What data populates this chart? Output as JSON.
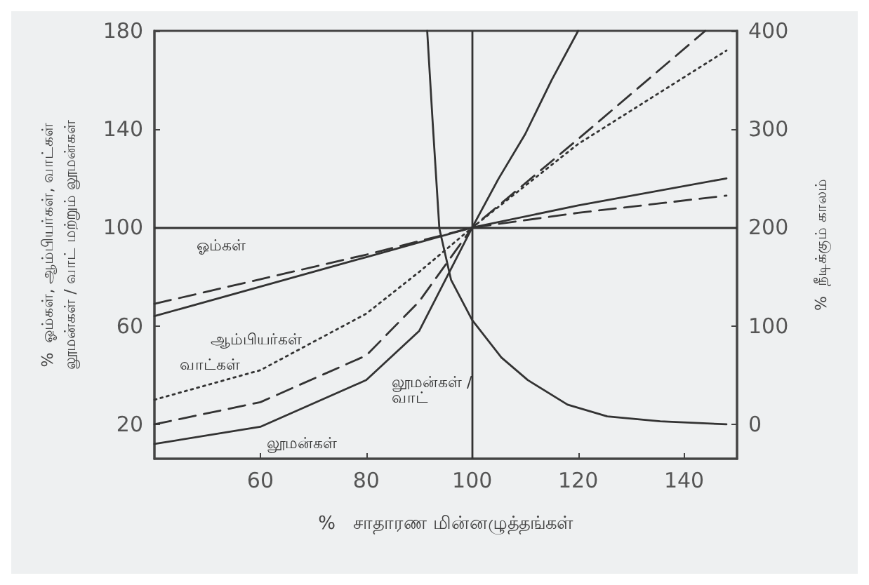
{
  "chart_data": {
    "type": "line",
    "xlabel": "%   சாதாரண மின்னழுத்தங்கள்",
    "ylabel": "%  ஓம்கள், ஆம்பியர்கள், வாட்கள்\nலூமன்கள் / வாட் மற்றும் லூமன்கள்",
    "y2label": "%  நீடிக்கும் காலம்",
    "xlim": [
      40,
      150
    ],
    "xticks": [
      60,
      80,
      100,
      120,
      140
    ],
    "ylim": [
      6,
      180
    ],
    "yticks": [
      20,
      60,
      100,
      140,
      180
    ],
    "y2lim": [
      -35,
      400
    ],
    "y2ticks": [
      0,
      100,
      200,
      300,
      400
    ],
    "grid": false,
    "marker": "none",
    "series": [
      {
        "color": "#333333",
        "line_style": "dashed",
        "x": [
          40,
          60,
          80,
          100,
          120,
          148
        ],
        "values": [
          69,
          79,
          89,
          100,
          106,
          113
        ]
      },
      {
        "color": "#333333",
        "line_style": "solid",
        "x": [
          40,
          60,
          80,
          100,
          120,
          148
        ],
        "values": [
          64,
          76,
          88,
          100,
          109,
          120
        ]
      },
      {
        "color": "#333333",
        "line_style": "dotted",
        "x": [
          40,
          60,
          80,
          90,
          100,
          120,
          148
        ],
        "values": [
          30,
          42,
          65,
          82,
          100,
          134,
          172
        ]
      },
      {
        "color": "#333333",
        "line_style": "dashed",
        "x": [
          40,
          60,
          80,
          90,
          100,
          120,
          144
        ],
        "values": [
          20,
          29,
          48,
          70,
          100,
          136,
          180
        ]
      },
      {
        "color": "#333333",
        "line_style": "solid",
        "x": [
          40,
          60,
          80,
          90,
          100,
          105,
          110,
          115,
          120
        ],
        "values": [
          12,
          19,
          38,
          58,
          100,
          120,
          138,
          160,
          180
        ]
      },
      {
        "color": "#333333",
        "line_style": "solid",
        "axis": "y2",
        "x": [
          91.5,
          92.5,
          93.8,
          96,
          100,
          105.5,
          110.5,
          118,
          125.5,
          135.5,
          148
        ],
        "values": [
          400,
          310,
          199,
          147,
          106,
          68,
          45,
          20,
          8,
          3,
          0
        ]
      }
    ],
    "ref_lines": [
      {
        "axis": "x",
        "value": 100
      },
      {
        "axis": "y2",
        "value": 200
      }
    ],
    "annotations": [
      "ஓம்கள்",
      "ஆம்பியர்கள்",
      "வாட்கள்",
      "லூமன்கள் /\nவாட்",
      "லூமன்கள்"
    ]
  }
}
